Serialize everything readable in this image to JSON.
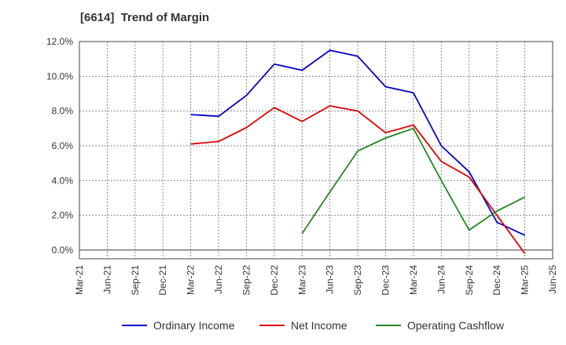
{
  "chart_data": {
    "type": "line",
    "title": "[6614]  Trend of Margin",
    "xlabel": "",
    "ylabel": "",
    "categories": [
      "Mar-21",
      "Jun-21",
      "Sep-21",
      "Dec-21",
      "Mar-22",
      "Jun-22",
      "Sep-22",
      "Dec-22",
      "Mar-23",
      "Jun-23",
      "Sep-23",
      "Dec-23",
      "Mar-24",
      "Jun-24",
      "Sep-24",
      "Dec-24",
      "Mar-25",
      "Jun-25"
    ],
    "ylim": [
      -0.5,
      12.0
    ],
    "yticks": [
      0.0,
      2.0,
      4.0,
      6.0,
      8.0,
      10.0,
      12.0
    ],
    "ytick_labels": [
      "0.0%",
      "2.0%",
      "4.0%",
      "6.0%",
      "8.0%",
      "10.0%",
      "12.0%"
    ],
    "grid": true,
    "legend_position": "bottom",
    "series": [
      {
        "name": "Ordinary Income",
        "color": "#0000cc",
        "values": [
          null,
          null,
          null,
          null,
          7.8,
          7.7,
          8.9,
          10.7,
          10.35,
          11.5,
          11.15,
          9.4,
          9.05,
          6.0,
          4.5,
          1.6,
          0.85,
          null
        ]
      },
      {
        "name": "Net Income",
        "color": "#dd0000",
        "values": [
          null,
          null,
          null,
          null,
          6.1,
          6.25,
          7.05,
          8.2,
          7.4,
          8.3,
          8.0,
          6.75,
          7.2,
          5.1,
          4.2,
          2.0,
          -0.2,
          null
        ]
      },
      {
        "name": "Operating Cashflow",
        "color": "#228822",
        "values": [
          null,
          null,
          null,
          null,
          null,
          null,
          null,
          null,
          0.95,
          3.35,
          5.7,
          6.45,
          7.0,
          4.0,
          1.15,
          2.25,
          3.05,
          null
        ]
      }
    ]
  }
}
